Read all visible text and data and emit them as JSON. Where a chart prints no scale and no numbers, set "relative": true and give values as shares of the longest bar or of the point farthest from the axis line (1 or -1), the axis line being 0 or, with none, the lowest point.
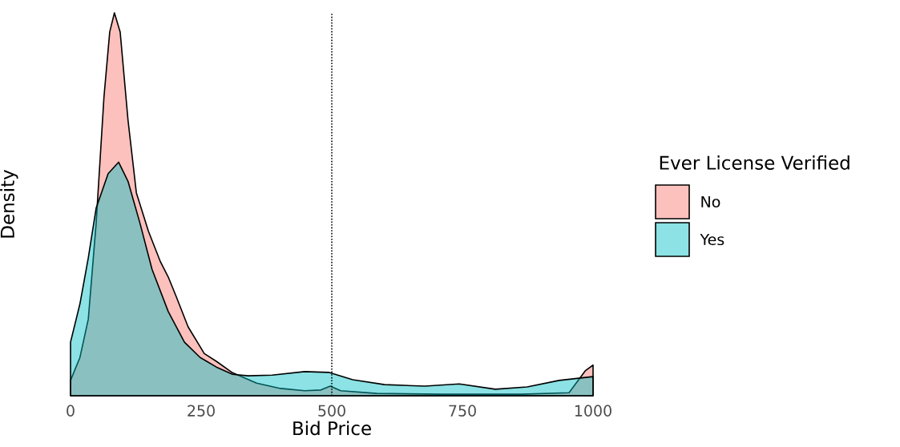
{
  "chart_data": {
    "type": "area",
    "relative": true,
    "xlabel": "Bid Price",
    "ylabel": "Density",
    "legend_title": "Ever License Verified",
    "xlim": [
      0,
      1000
    ],
    "xticks": [
      0,
      250,
      500,
      750,
      1000
    ],
    "x": [
      0,
      18,
      34,
      49,
      64,
      75,
      84,
      95,
      110,
      126,
      149,
      172,
      187,
      202,
      225,
      256,
      279,
      310,
      356,
      402,
      448,
      479,
      497,
      517,
      586,
      709,
      862,
      954,
      985,
      1000
    ],
    "series": [
      {
        "name": "No",
        "color": "#f8766d",
        "values": [
          0.04,
          0.1,
          0.2,
          0.45,
          0.78,
          0.95,
          1.0,
          0.95,
          0.72,
          0.53,
          0.43,
          0.35,
          0.31,
          0.26,
          0.18,
          0.11,
          0.09,
          0.06,
          0.033,
          0.019,
          0.013,
          0.015,
          0.025,
          0.013,
          0.006,
          0.004,
          0.004,
          0.008,
          0.065,
          0.08
        ]
      },
      {
        "name": "Yes",
        "color": "#00bfc4",
        "x": [
          0,
          18,
          34,
          49,
          72,
          92,
          110,
          133,
          156,
          187,
          218,
          248,
          279,
          310,
          340,
          386,
          448,
          494,
          540,
          601,
          678,
          744,
          813,
          874,
          935,
          1000
        ],
        "values": [
          0.14,
          0.24,
          0.36,
          0.49,
          0.58,
          0.61,
          0.56,
          0.45,
          0.33,
          0.22,
          0.14,
          0.1,
          0.075,
          0.056,
          0.052,
          0.054,
          0.063,
          0.061,
          0.042,
          0.029,
          0.025,
          0.031,
          0.017,
          0.023,
          0.04,
          0.05
        ]
      }
    ],
    "ref_lines": [
      {
        "axis": "x",
        "value": 500,
        "line_style": "dotted",
        "color": "#000000"
      }
    ],
    "legend": "right",
    "marker": "none",
    "line_style": "solid"
  }
}
